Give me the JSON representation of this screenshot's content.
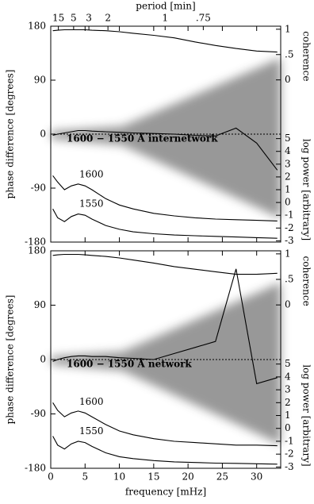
{
  "chart_data": [
    {
      "type": "line",
      "x2label": "period [min]",
      "x2scale": "period_min",
      "x2ticks": [
        15,
        5,
        3,
        2,
        1,
        {
          "value": 0.75,
          "label": ".75"
        }
      ],
      "ylabel": "phase difference [degrees]",
      "y2label": "coherence",
      "y3label": "log power [arbitrary]",
      "annotation": "1600 − 1550 Å internetwork",
      "xlim": [
        0,
        33.5
      ],
      "ylim": [
        -180,
        180
      ],
      "yticks": [
        180,
        90,
        0,
        -90,
        -180
      ],
      "y2lim": [
        -3.2,
        1.06
      ],
      "y2ticks": [
        1,
        {
          "value": 0.5,
          "label": ".5"
        },
        0
      ],
      "y3lim": [
        -3.1,
        13.8
      ],
      "y3ticks": [
        5,
        4,
        3,
        2,
        1,
        0,
        -1,
        -2,
        -3
      ],
      "x": [
        0.3,
        1,
        2,
        3,
        4,
        5,
        6,
        8,
        10,
        12,
        15,
        18,
        21,
        24,
        27,
        30,
        33
      ],
      "series": [
        {
          "axis": "y2",
          "color": "#000000",
          "values": [
            0.97,
            0.98,
            0.99,
            0.99,
            0.99,
            0.99,
            0.98,
            0.97,
            0.95,
            0.92,
            0.88,
            0.83,
            0.75,
            0.68,
            0.62,
            0.57,
            0.55
          ]
        },
        {
          "axis": "y",
          "color": "#000000",
          "values": [
            -2,
            0,
            2,
            4,
            6,
            6,
            5,
            4,
            3,
            2,
            1,
            0,
            -2,
            -3,
            10,
            -15,
            -60
          ]
        },
        {
          "name": "1600",
          "axis": "y3",
          "color": "#000000",
          "values": [
            2.1,
            1.6,
            1.0,
            1.3,
            1.45,
            1.3,
            1.0,
            0.3,
            -0.2,
            -0.5,
            -0.85,
            -1.05,
            -1.2,
            -1.3,
            -1.35,
            -1.4,
            -1.45
          ]
        },
        {
          "name": "1550",
          "axis": "y3",
          "color": "#000000",
          "values": [
            -0.5,
            -1.2,
            -1.5,
            -1.1,
            -0.9,
            -1.0,
            -1.3,
            -1.8,
            -2.1,
            -2.3,
            -2.45,
            -2.55,
            -2.6,
            -2.65,
            -2.7,
            -2.75,
            -2.8
          ]
        }
      ]
    },
    {
      "type": "line",
      "xlabel": "frequency [mHz]",
      "xticks": [
        0,
        5,
        10,
        15,
        20,
        25,
        30
      ],
      "ylabel": "phase difference [degrees]",
      "y2label": "coherence",
      "y3label": "log power [arbitrary]",
      "annotation": "1600 − 1550 Å network",
      "xlim": [
        0,
        33.5
      ],
      "ylim": [
        -180,
        180
      ],
      "yticks": [
        180,
        90,
        0,
        -90,
        -180
      ],
      "y2lim": [
        -3.2,
        1.06
      ],
      "y2ticks": [
        1,
        {
          "value": 0.5,
          "label": ".5"
        },
        0
      ],
      "y3lim": [
        -3.1,
        13.8
      ],
      "y3ticks": [
        5,
        4,
        3,
        2,
        1,
        0,
        -1,
        -2,
        -3
      ],
      "x": [
        0.3,
        1,
        2,
        3,
        4,
        5,
        6,
        8,
        10,
        12,
        15,
        18,
        21,
        24,
        27,
        30,
        33
      ],
      "series": [
        {
          "axis": "y2",
          "color": "#000000",
          "values": [
            0.97,
            0.98,
            0.99,
            0.99,
            0.99,
            0.98,
            0.97,
            0.95,
            0.92,
            0.88,
            0.82,
            0.75,
            0.7,
            0.65,
            0.6,
            0.6,
            0.62
          ]
        },
        {
          "axis": "y",
          "color": "#000000",
          "values": [
            -3,
            0,
            3,
            5,
            6,
            6,
            5,
            5,
            3,
            2,
            0,
            10,
            20,
            30,
            150,
            -40,
            -30
          ]
        },
        {
          "name": "1600",
          "axis": "y3",
          "color": "#000000",
          "values": [
            2.0,
            1.4,
            0.9,
            1.2,
            1.35,
            1.2,
            0.9,
            0.3,
            -0.2,
            -0.5,
            -0.8,
            -1.0,
            -1.1,
            -1.2,
            -1.3,
            -1.3,
            -1.35
          ]
        },
        {
          "name": "1550",
          "axis": "y3",
          "color": "#000000",
          "values": [
            -0.6,
            -1.3,
            -1.6,
            -1.2,
            -1.0,
            -1.1,
            -1.4,
            -1.9,
            -2.2,
            -2.35,
            -2.5,
            -2.6,
            -2.65,
            -2.7,
            -2.72,
            -2.75,
            -2.78
          ]
        }
      ]
    }
  ]
}
